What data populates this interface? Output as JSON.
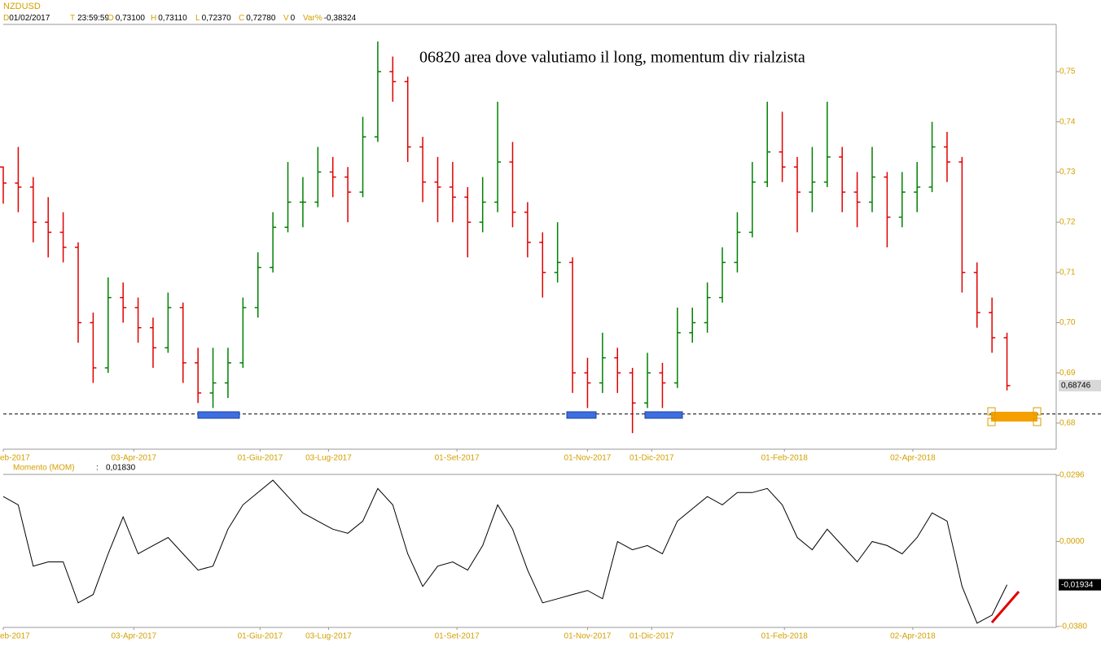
{
  "header": {
    "symbol": "NZDUSD",
    "d_key": "D",
    "d_val": "01/02/2017",
    "t_key": "T",
    "t_val": "23:59:59",
    "o_key": "O",
    "o_val": "0,73100",
    "h_key": "H",
    "h_val": "0,73110",
    "l_key": "L",
    "l_val": "0,72370",
    "c_key": "C",
    "c_val": "0,72780",
    "v_key": "V",
    "v_val": "0",
    "var_key": "Var%",
    "var_val": "-0,38324"
  },
  "chart_data": [
    {
      "type": "ohlc",
      "annotation": "06820 area dove valutiamo il long, momentum div rialzista",
      "xlim": [
        "2017-02-01",
        "2018-06-08"
      ],
      "xticks": [
        {
          "value": "2017-02-01",
          "label": "eb-2017"
        },
        {
          "value": "2017-04-03",
          "label": "03-Apr-2017"
        },
        {
          "value": "2017-06-01",
          "label": "01-Giu-2017"
        },
        {
          "value": "2017-07-03",
          "label": "03-Lug-2017"
        },
        {
          "value": "2017-09-01",
          "label": "01-Set-2017"
        },
        {
          "value": "2017-11-01",
          "label": "01-Nov-2017"
        },
        {
          "value": "2017-12-01",
          "label": "01-Dic-2017"
        },
        {
          "value": "2018-02-01",
          "label": "01-Feb-2018"
        },
        {
          "value": "2018-04-02",
          "label": "02-Apr-2018"
        }
      ],
      "ylim": [
        0.6748,
        0.7594
      ],
      "yticks": [
        {
          "value": 0.68,
          "label": "0,68"
        },
        {
          "value": 0.69,
          "label": "0,69"
        },
        {
          "value": 0.7,
          "label": "0,70"
        },
        {
          "value": 0.71,
          "label": "0,71"
        },
        {
          "value": 0.72,
          "label": "0,72"
        },
        {
          "value": 0.73,
          "label": "0,73"
        },
        {
          "value": 0.74,
          "label": "0,74"
        },
        {
          "value": 0.75,
          "label": "0,75"
        }
      ],
      "up_color": "#008000",
      "down_color": "#e00000",
      "hline": 0.6818,
      "last_value_label": "0,68746",
      "x": [
        "2017-02-01",
        "2017-02-08",
        "2017-02-15",
        "2017-02-22",
        "2017-03-01",
        "2017-03-08",
        "2017-03-15",
        "2017-03-22",
        "2017-03-29",
        "2017-04-05",
        "2017-04-12",
        "2017-04-19",
        "2017-04-26",
        "2017-05-03",
        "2017-05-10",
        "2017-05-17",
        "2017-05-24",
        "2017-05-31",
        "2017-06-07",
        "2017-06-14",
        "2017-06-21",
        "2017-06-28",
        "2017-07-05",
        "2017-07-12",
        "2017-07-19",
        "2017-07-26",
        "2017-08-02",
        "2017-08-09",
        "2017-08-16",
        "2017-08-23",
        "2017-08-30",
        "2017-09-06",
        "2017-09-13",
        "2017-09-20",
        "2017-09-27",
        "2017-10-04",
        "2017-10-11",
        "2017-10-18",
        "2017-10-25",
        "2017-11-01",
        "2017-11-08",
        "2017-11-15",
        "2017-11-22",
        "2017-11-29",
        "2017-12-06",
        "2017-12-13",
        "2017-12-20",
        "2017-12-27",
        "2018-01-03",
        "2018-01-10",
        "2018-01-17",
        "2018-01-24",
        "2018-01-31",
        "2018-02-07",
        "2018-02-14",
        "2018-02-21",
        "2018-02-28",
        "2018-03-07",
        "2018-03-14",
        "2018-03-21",
        "2018-03-28",
        "2018-04-04",
        "2018-04-11",
        "2018-04-18",
        "2018-04-25",
        "2018-05-02",
        "2018-05-09",
        "2018-05-16"
      ],
      "open": [
        0.731,
        0.7278,
        0.727,
        0.72,
        0.718,
        0.715,
        0.7,
        0.691,
        0.705,
        0.703,
        0.699,
        0.695,
        0.703,
        0.692,
        0.686,
        0.688,
        0.692,
        0.703,
        0.711,
        0.719,
        0.724,
        0.724,
        0.73,
        0.729,
        0.726,
        0.737,
        0.75,
        0.748,
        0.735,
        0.728,
        0.727,
        0.725,
        0.72,
        0.724,
        0.732,
        0.722,
        0.716,
        0.71,
        0.712,
        0.69,
        0.688,
        0.693,
        0.69,
        0.684,
        0.69,
        0.688,
        0.698,
        0.7,
        0.705,
        0.712,
        0.718,
        0.728,
        0.734,
        0.731,
        0.726,
        0.728,
        0.733,
        0.726,
        0.724,
        0.729,
        0.721,
        0.726,
        0.727,
        0.735,
        0.732,
        0.71,
        0.702,
        0.697
      ],
      "high": [
        0.7311,
        0.735,
        0.729,
        0.725,
        0.722,
        0.716,
        0.702,
        0.709,
        0.708,
        0.705,
        0.701,
        0.706,
        0.704,
        0.695,
        0.695,
        0.695,
        0.705,
        0.714,
        0.722,
        0.732,
        0.729,
        0.735,
        0.733,
        0.731,
        0.741,
        0.756,
        0.753,
        0.749,
        0.737,
        0.733,
        0.732,
        0.727,
        0.729,
        0.744,
        0.736,
        0.724,
        0.718,
        0.72,
        0.713,
        0.693,
        0.698,
        0.695,
        0.691,
        0.694,
        0.692,
        0.703,
        0.703,
        0.708,
        0.715,
        0.722,
        0.732,
        0.744,
        0.742,
        0.733,
        0.735,
        0.744,
        0.735,
        0.73,
        0.735,
        0.73,
        0.73,
        0.732,
        0.74,
        0.738,
        0.733,
        0.712,
        0.705,
        0.698
      ],
      "low": [
        0.7237,
        0.722,
        0.716,
        0.713,
        0.712,
        0.696,
        0.688,
        0.69,
        0.7,
        0.696,
        0.691,
        0.694,
        0.688,
        0.684,
        0.683,
        0.685,
        0.691,
        0.701,
        0.71,
        0.718,
        0.719,
        0.723,
        0.725,
        0.72,
        0.725,
        0.736,
        0.744,
        0.732,
        0.724,
        0.72,
        0.72,
        0.713,
        0.718,
        0.722,
        0.719,
        0.713,
        0.705,
        0.708,
        0.686,
        0.683,
        0.686,
        0.686,
        0.678,
        0.683,
        0.683,
        0.687,
        0.696,
        0.698,
        0.704,
        0.71,
        0.717,
        0.727,
        0.728,
        0.718,
        0.722,
        0.727,
        0.722,
        0.719,
        0.722,
        0.715,
        0.719,
        0.722,
        0.726,
        0.728,
        0.706,
        0.699,
        0.694,
        0.6865
      ],
      "close": [
        0.7278,
        0.727,
        0.72,
        0.718,
        0.715,
        0.7,
        0.691,
        0.705,
        0.703,
        0.699,
        0.695,
        0.703,
        0.692,
        0.686,
        0.688,
        0.692,
        0.703,
        0.711,
        0.719,
        0.724,
        0.724,
        0.73,
        0.729,
        0.726,
        0.737,
        0.75,
        0.748,
        0.735,
        0.728,
        0.727,
        0.725,
        0.72,
        0.724,
        0.732,
        0.722,
        0.716,
        0.71,
        0.712,
        0.69,
        0.688,
        0.693,
        0.69,
        0.684,
        0.69,
        0.688,
        0.698,
        0.7,
        0.705,
        0.712,
        0.718,
        0.728,
        0.734,
        0.731,
        0.726,
        0.728,
        0.733,
        0.726,
        0.724,
        0.729,
        0.721,
        0.726,
        0.727,
        0.735,
        0.732,
        0.71,
        0.702,
        0.697,
        0.68746
      ]
    },
    {
      "type": "line",
      "indicator": "Momento (MOM)",
      "separator": ":",
      "indicator_value": "0,01830",
      "xlim": [
        "2017-02-01",
        "2018-06-08"
      ],
      "xticks": [
        {
          "value": "2017-02-01",
          "label": "eb-2017"
        },
        {
          "value": "2017-04-03",
          "label": "03-Apr-2017"
        },
        {
          "value": "2017-06-01",
          "label": "01-Giu-2017"
        },
        {
          "value": "2017-07-03",
          "label": "03-Lug-2017"
        },
        {
          "value": "2017-09-01",
          "label": "01-Set-2017"
        },
        {
          "value": "2017-11-01",
          "label": "01-Nov-2017"
        },
        {
          "value": "2017-12-01",
          "label": "01-Dic-2017"
        },
        {
          "value": "2018-02-01",
          "label": "01-Feb-2018"
        },
        {
          "value": "2018-04-02",
          "label": "02-Apr-2018"
        }
      ],
      "ylim": [
        -0.0384,
        0.03
      ],
      "yticks": [
        {
          "value": -0.038,
          "label": "-0,0380"
        },
        {
          "value": 0,
          "label": "0,0000"
        },
        {
          "value": 0.0296,
          "label": "0,0296"
        }
      ],
      "last_value_label": "-0,01934",
      "x": [
        "2017-02-01",
        "2017-02-08",
        "2017-02-15",
        "2017-02-22",
        "2017-03-01",
        "2017-03-08",
        "2017-03-15",
        "2017-03-22",
        "2017-03-29",
        "2017-04-05",
        "2017-04-12",
        "2017-04-19",
        "2017-04-26",
        "2017-05-03",
        "2017-05-10",
        "2017-05-17",
        "2017-05-24",
        "2017-05-31",
        "2017-06-07",
        "2017-06-14",
        "2017-06-21",
        "2017-06-28",
        "2017-07-05",
        "2017-07-12",
        "2017-07-19",
        "2017-07-26",
        "2017-08-02",
        "2017-08-09",
        "2017-08-16",
        "2017-08-23",
        "2017-08-30",
        "2017-09-06",
        "2017-09-13",
        "2017-09-20",
        "2017-09-27",
        "2017-10-04",
        "2017-10-11",
        "2017-10-18",
        "2017-10-25",
        "2017-11-01",
        "2017-11-08",
        "2017-11-15",
        "2017-11-22",
        "2017-11-29",
        "2017-12-06",
        "2017-12-13",
        "2017-12-20",
        "2017-12-27",
        "2018-01-03",
        "2018-01-10",
        "2018-01-17",
        "2018-01-24",
        "2018-01-31",
        "2018-02-07",
        "2018-02-14",
        "2018-02-21",
        "2018-02-28",
        "2018-03-07",
        "2018-03-14",
        "2018-03-21",
        "2018-03-28",
        "2018-04-04",
        "2018-04-11",
        "2018-04-18",
        "2018-04-25",
        "2018-05-02",
        "2018-05-09",
        "2018-05-16"
      ],
      "series": [
        {
          "color": "#000000",
          "values": [
            0.0201,
            0.0164,
            -0.011,
            -0.0091,
            -0.0091,
            -0.0274,
            -0.0237,
            -0.0055,
            0.011,
            -0.0055,
            -0.0018,
            0.0018,
            -0.0055,
            -0.0128,
            -0.011,
            0.0055,
            0.0164,
            0.0219,
            0.0274,
            0.0201,
            0.0128,
            0.0091,
            0.0055,
            0.0037,
            0.0091,
            0.0237,
            0.0164,
            -0.0055,
            -0.0201,
            -0.011,
            -0.0091,
            -0.0128,
            -0.0018,
            0.0164,
            0.0055,
            -0.0128,
            -0.0274,
            -0.0256,
            -0.0237,
            -0.0219,
            -0.0256,
            0,
            -0.0037,
            -0.0018,
            -0.0055,
            0.0091,
            0.0146,
            0.0201,
            0.0164,
            0.0219,
            0.0219,
            0.0237,
            0.0164,
            0.0018,
            -0.0037,
            0.0055,
            -0.0018,
            -0.0091,
            0,
            -0.0018,
            -0.0055,
            0.0018,
            0.0128,
            0.0091,
            -0.0201,
            -0.0365,
            -0.0329,
            -0.01934
          ]
        }
      ]
    }
  ]
}
